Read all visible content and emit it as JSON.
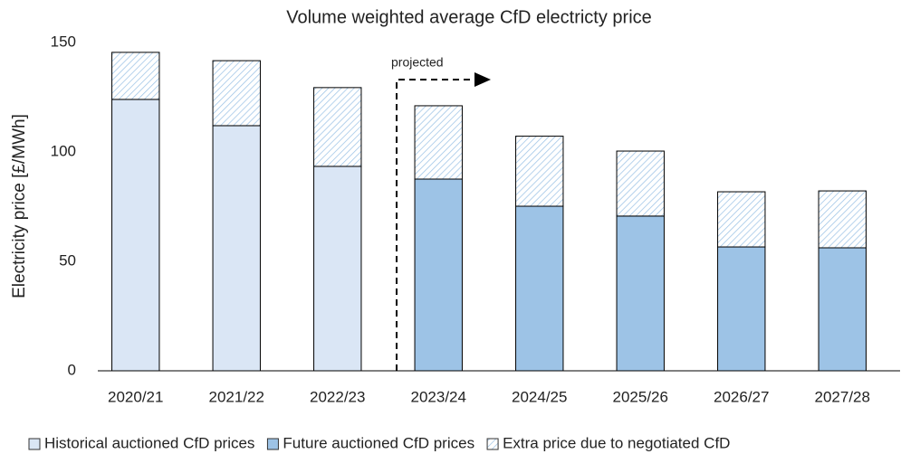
{
  "chart_data": {
    "type": "stacked_bar",
    "title": "Volume weighted average CfD electricty price",
    "y_label": "Electricity price [£/MWh]",
    "annotation": "projected",
    "categories": [
      "2020/21",
      "2021/22",
      "2022/23",
      "2023/24",
      "2024/25",
      "2025/26",
      "2026/27",
      "2027/28"
    ],
    "series": [
      {
        "name": "Historical auctioned CfD prices",
        "color": "#dae6f5",
        "values": [
          124,
          112,
          93.4,
          null,
          null,
          null,
          null,
          null
        ]
      },
      {
        "name": "Future auctioned CfD prices",
        "color": "#9dc3e6",
        "values": [
          null,
          null,
          null,
          87.6,
          75.2,
          70.7,
          56.6,
          56.2
        ]
      },
      {
        "name": "Extra price due to negotiated CfD",
        "color": "#9dc3e6",
        "hatch": true,
        "values": [
          21.5,
          29.7,
          36,
          33.5,
          32,
          29.7,
          25.2,
          26
        ]
      }
    ],
    "ylim": [
      0,
      150
    ],
    "yticks": [
      0,
      50,
      100,
      150
    ],
    "grid": false,
    "legend": "bottom"
  }
}
